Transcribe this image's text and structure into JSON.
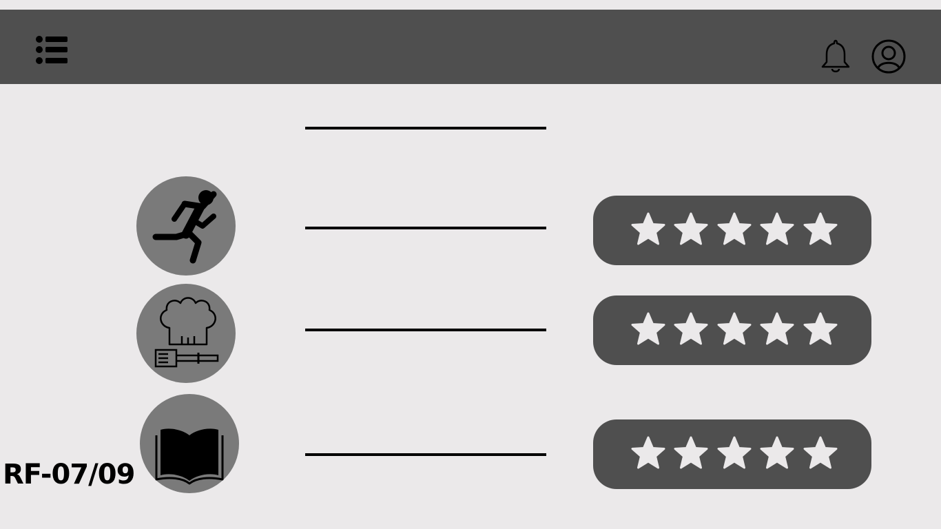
{
  "header": {
    "menu_icon": "list-icon",
    "notification_icon": "bell-icon",
    "profile_icon": "user-circle-icon",
    "background_color": "#4f4f4f"
  },
  "categories": [
    {
      "icon": "running-person-icon",
      "label": "",
      "rating": 0,
      "max_rating": 5
    },
    {
      "icon": "chef-hat-icon",
      "label": "",
      "rating": 0,
      "max_rating": 5
    },
    {
      "icon": "open-book-icon",
      "label": "",
      "rating": 0,
      "max_rating": 5
    }
  ],
  "colors": {
    "page_background": "#ebe9ea",
    "icon_circle": "#7a7a7a",
    "rating_panel": "#4f4f4f",
    "star": "#ebe9ea"
  },
  "footer": {
    "code": "RF-07/09"
  }
}
